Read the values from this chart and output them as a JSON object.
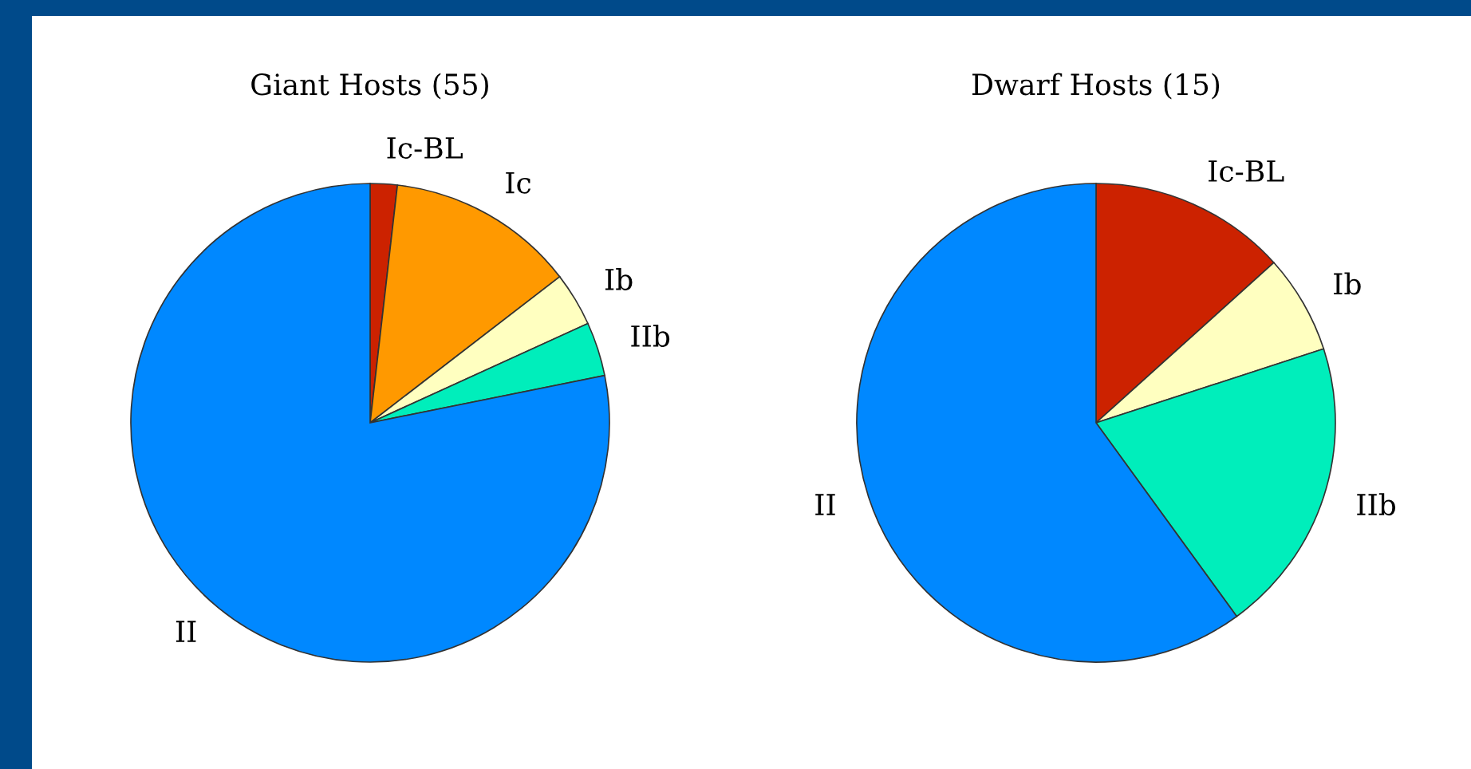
{
  "chart_data": [
    {
      "type": "pie",
      "title": "Giant Hosts (55)",
      "categories": [
        "Ic-BL",
        "Ic",
        "Ib",
        "IIb",
        "II"
      ],
      "values": [
        1.82,
        12.73,
        3.64,
        3.64,
        78.17
      ],
      "colors": [
        "#cc2200",
        "#ff9900",
        "#ffffc0",
        "#00eebb",
        "#0088ff"
      ]
    },
    {
      "type": "pie",
      "title": "Dwarf Hosts (15)",
      "categories": [
        "Ic-BL",
        "Ib",
        "IIb",
        "II"
      ],
      "values": [
        13.33,
        6.67,
        20,
        60
      ],
      "colors": [
        "#cc2200",
        "#ffffc0",
        "#00eebb",
        "#0088ff"
      ]
    }
  ]
}
